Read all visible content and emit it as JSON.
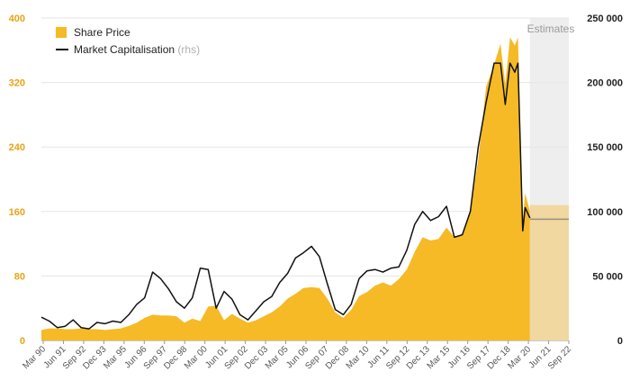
{
  "chart_data": {
    "type": "area",
    "legend": {
      "position": "top-left",
      "share_price_label": "Share Price",
      "market_cap_label": "Market Capitalisation",
      "market_cap_suffix": "(rhs)"
    },
    "estimates_label": "Estimates",
    "x_tick_labels": [
      "Mar 90",
      "Jun 91",
      "Sep 92",
      "Dec 93",
      "Mar 95",
      "Jun 96",
      "Sep 97",
      "Dec 98",
      "Mar 00",
      "Jun 01",
      "Sep 02",
      "Dec 03",
      "Mar 05",
      "Jun 06",
      "Sep 07",
      "Dec 08",
      "Mar 10",
      "Jun 11",
      "Sep 12",
      "Dec 13",
      "Mar 15",
      "Jun 16",
      "Sep 17",
      "Dec 18",
      "Mar 20",
      "Jun 21",
      "Sep 22"
    ],
    "y_left": {
      "ticks": [
        "0",
        "80",
        "160",
        "240",
        "320",
        "400"
      ],
      "ylim": [
        0,
        400
      ],
      "color": "#E8A317"
    },
    "y_right": {
      "ticks": [
        "0",
        "50 000",
        "100 000",
        "150 000",
        "200 000",
        "250 000"
      ],
      "ylim": [
        0,
        250000
      ],
      "color": "#222222"
    },
    "grid": true,
    "x_range": [
      1990.0,
      2023.2
    ],
    "estimate_start": 2020.75,
    "series": [
      {
        "name": "Share Price",
        "axis": "left",
        "color": "#F5BA26",
        "points": [
          [
            1990.0,
            13
          ],
          [
            1990.5,
            15
          ],
          [
            1991.0,
            15
          ],
          [
            1991.5,
            14
          ],
          [
            1992.0,
            14
          ],
          [
            1992.5,
            15
          ],
          [
            1993.0,
            14
          ],
          [
            1993.5,
            14
          ],
          [
            1994.0,
            13
          ],
          [
            1994.5,
            14
          ],
          [
            1995.0,
            15
          ],
          [
            1995.5,
            18
          ],
          [
            1996.0,
            22
          ],
          [
            1996.5,
            28
          ],
          [
            1997.0,
            32
          ],
          [
            1997.5,
            31
          ],
          [
            1998.0,
            31
          ],
          [
            1998.5,
            30
          ],
          [
            1999.0,
            22
          ],
          [
            1999.5,
            27
          ],
          [
            2000.0,
            24
          ],
          [
            2000.5,
            42
          ],
          [
            2001.0,
            43
          ],
          [
            2001.5,
            25
          ],
          [
            2002.0,
            33
          ],
          [
            2002.5,
            27
          ],
          [
            2003.0,
            22
          ],
          [
            2003.5,
            25
          ],
          [
            2004.0,
            30
          ],
          [
            2004.5,
            35
          ],
          [
            2005.0,
            42
          ],
          [
            2005.5,
            52
          ],
          [
            2006.0,
            58
          ],
          [
            2006.5,
            65
          ],
          [
            2007.0,
            66
          ],
          [
            2007.5,
            65
          ],
          [
            2008.0,
            52
          ],
          [
            2008.5,
            35
          ],
          [
            2009.0,
            28
          ],
          [
            2009.5,
            38
          ],
          [
            2010.0,
            55
          ],
          [
            2010.5,
            60
          ],
          [
            2011.0,
            68
          ],
          [
            2011.5,
            72
          ],
          [
            2012.0,
            68
          ],
          [
            2012.5,
            76
          ],
          [
            2013.0,
            88
          ],
          [
            2013.5,
            110
          ],
          [
            2014.0,
            128
          ],
          [
            2014.5,
            124
          ],
          [
            2015.0,
            126
          ],
          [
            2015.5,
            140
          ],
          [
            2016.0,
            128
          ],
          [
            2016.5,
            131
          ],
          [
            2017.0,
            162
          ],
          [
            2017.5,
            225
          ],
          [
            2018.0,
            315
          ],
          [
            2018.5,
            342
          ],
          [
            2018.9,
            368
          ],
          [
            2019.2,
            318
          ],
          [
            2019.5,
            376
          ],
          [
            2019.8,
            366
          ],
          [
            2020.0,
            376
          ],
          [
            2020.3,
            150
          ],
          [
            2020.45,
            183
          ],
          [
            2020.75,
            160
          ]
        ]
      },
      {
        "name": "Market Capitalisation",
        "axis": "right",
        "color": "#111111",
        "points": [
          [
            1990.0,
            18000
          ],
          [
            1990.5,
            15000
          ],
          [
            1991.0,
            10000
          ],
          [
            1991.5,
            11000
          ],
          [
            1992.0,
            16000
          ],
          [
            1992.5,
            10000
          ],
          [
            1993.0,
            9000
          ],
          [
            1993.5,
            14000
          ],
          [
            1994.0,
            13000
          ],
          [
            1994.5,
            15000
          ],
          [
            1995.0,
            14000
          ],
          [
            1995.5,
            20000
          ],
          [
            1996.0,
            28000
          ],
          [
            1996.5,
            33000
          ],
          [
            1997.0,
            53000
          ],
          [
            1997.5,
            48000
          ],
          [
            1998.0,
            40000
          ],
          [
            1998.5,
            30000
          ],
          [
            1999.0,
            25000
          ],
          [
            1999.5,
            33000
          ],
          [
            2000.0,
            56000
          ],
          [
            2000.5,
            55000
          ],
          [
            2001.0,
            25000
          ],
          [
            2001.5,
            38000
          ],
          [
            2002.0,
            32000
          ],
          [
            2002.5,
            20000
          ],
          [
            2003.0,
            16000
          ],
          [
            2003.5,
            23000
          ],
          [
            2004.0,
            30000
          ],
          [
            2004.5,
            34000
          ],
          [
            2005.0,
            45000
          ],
          [
            2005.5,
            52000
          ],
          [
            2006.0,
            64000
          ],
          [
            2006.5,
            68000
          ],
          [
            2007.0,
            73000
          ],
          [
            2007.5,
            65000
          ],
          [
            2008.0,
            44000
          ],
          [
            2008.5,
            24000
          ],
          [
            2009.0,
            20000
          ],
          [
            2009.5,
            28000
          ],
          [
            2010.0,
            48000
          ],
          [
            2010.5,
            54000
          ],
          [
            2011.0,
            55000
          ],
          [
            2011.5,
            53000
          ],
          [
            2012.0,
            56000
          ],
          [
            2012.5,
            57000
          ],
          [
            2013.0,
            70000
          ],
          [
            2013.5,
            90000
          ],
          [
            2014.0,
            100000
          ],
          [
            2014.5,
            93000
          ],
          [
            2015.0,
            96000
          ],
          [
            2015.5,
            104000
          ],
          [
            2016.0,
            80000
          ],
          [
            2016.5,
            82000
          ],
          [
            2017.0,
            100000
          ],
          [
            2017.5,
            150000
          ],
          [
            2018.0,
            185000
          ],
          [
            2018.5,
            215000
          ],
          [
            2018.9,
            215000
          ],
          [
            2019.2,
            183000
          ],
          [
            2019.5,
            215000
          ],
          [
            2019.8,
            208000
          ],
          [
            2020.0,
            215000
          ],
          [
            2020.3,
            85000
          ],
          [
            2020.45,
            103000
          ],
          [
            2020.75,
            95000
          ]
        ]
      }
    ],
    "estimates": {
      "share_price": 168,
      "market_cap": 94000
    }
  }
}
